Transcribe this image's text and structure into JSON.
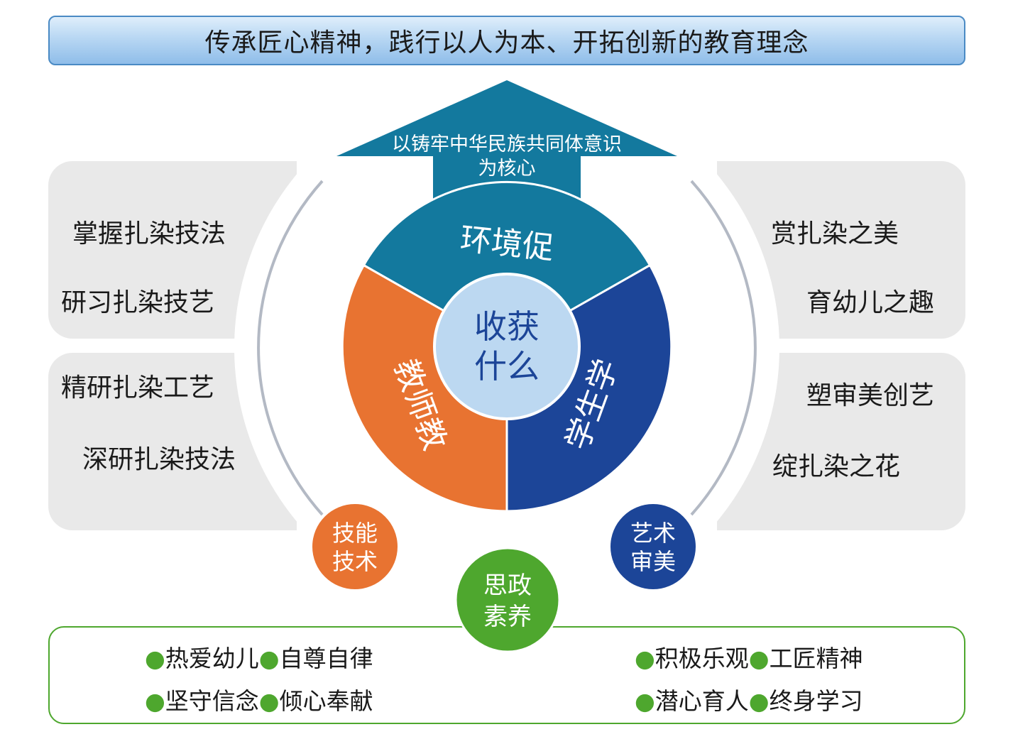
{
  "header": {
    "title": "传承匠心精神，践行以人为本、开拓创新的教育理念"
  },
  "arrow": {
    "line1": "以铸牢中华民族共同体意识",
    "line2": "为核心"
  },
  "center": {
    "line1": "收获",
    "line2": "什么"
  },
  "segments": {
    "top": "环境促",
    "left": "教师教",
    "right": "学生学"
  },
  "left_panels": {
    "top": [
      "掌握扎染技法",
      "研习扎染技艺"
    ],
    "bottom": [
      "精研扎染工艺",
      "深研扎染技法"
    ]
  },
  "right_panels": {
    "top": [
      "赏扎染之美",
      "育幼儿之趣"
    ],
    "bottom": [
      "塑审美创艺",
      "绽扎染之花"
    ]
  },
  "circles": {
    "skill": {
      "line1": "技能",
      "line2": "技术"
    },
    "art": {
      "line1": "艺术",
      "line2": "审美"
    },
    "ideology": {
      "line1": "思政",
      "line2": "素养"
    }
  },
  "traits": {
    "bullet": "●",
    "left_row1": [
      "热爱幼儿",
      "自尊自律"
    ],
    "left_row2": [
      "坚守信念",
      "倾心奉献"
    ],
    "right_row1": [
      "积极乐观",
      "工匠精神"
    ],
    "right_row2": [
      "潜心育人",
      "终身学习"
    ]
  },
  "colors": {
    "teal": "#13799e",
    "orange": "#e87331",
    "navy": "#1c4598",
    "center": "#bcd8f1",
    "green": "#4ea72e",
    "panel": "#e9e9e9"
  }
}
